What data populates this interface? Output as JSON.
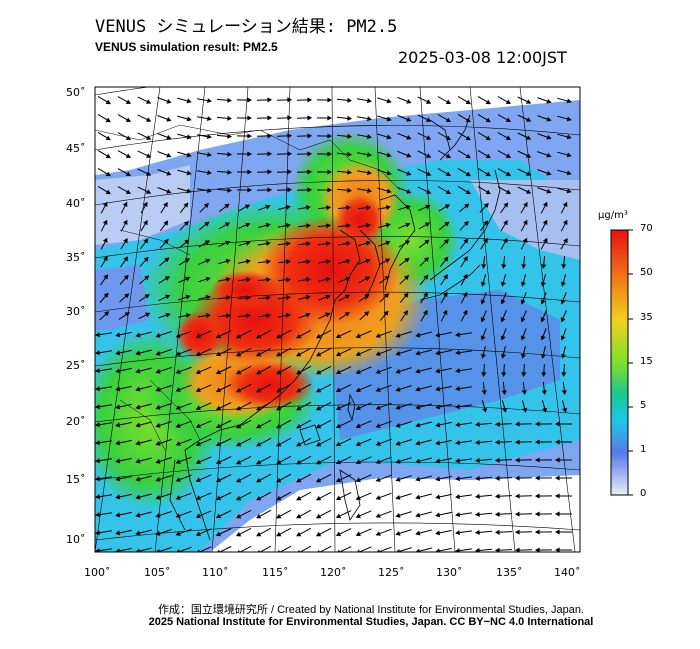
{
  "title_jp": "VENUS シミュレーション結果: PM2.5",
  "title_en": "VENUS simulation result: PM2.5",
  "timestamp": "2025-03-08 12:00JST",
  "lat_labels": [
    "50˚",
    "45˚",
    "40˚",
    "35˚",
    "30˚",
    "25˚",
    "20˚",
    "15˚",
    "10˚"
  ],
  "lon_labels": [
    "100˚",
    "105˚",
    "110˚",
    "115˚",
    "120˚",
    "125˚",
    "130˚",
    "135˚",
    "140˚"
  ],
  "colorbar": {
    "unit": "μg/m³",
    "ticks": [
      "70",
      "50",
      "35",
      "15",
      "5",
      "1",
      "0"
    ],
    "colors": [
      "#e8eef8",
      "#5a78e6",
      "#1ec8e6",
      "#18c890",
      "#7ee02a",
      "#f0d020",
      "#f07818",
      "#e81010"
    ]
  },
  "credit_line1": "作成：国立環境研究所 / Created by National Institute for Environmental Studies, Japan.",
  "credit_line2": "2025 National Institute for Environmental Studies, Japan. CC BY−NC 4.0 International"
}
